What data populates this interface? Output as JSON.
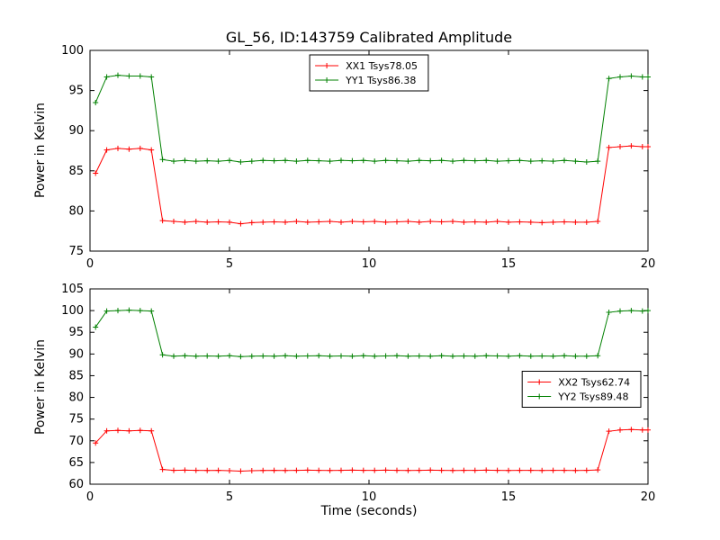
{
  "title": "GL_56, ID:143759 Calibrated Amplitude",
  "chart_data": [
    {
      "type": "line",
      "xlabel": "",
      "ylabel": "Power in Kelvin",
      "xlim": [
        0,
        20
      ],
      "ylim": [
        75,
        100
      ],
      "xticks": [
        0,
        5,
        10,
        15,
        20
      ],
      "yticks": [
        75,
        80,
        85,
        90,
        95,
        100
      ],
      "grid": false,
      "legend_position": "upper center",
      "series": [
        {
          "name": "XX1 Tsys78.05",
          "color": "#ff0000",
          "marker": "+",
          "x": [
            0.2,
            0.6,
            1.0,
            1.4,
            1.8,
            2.2,
            2.6,
            3.0,
            3.4,
            3.8,
            4.2,
            4.6,
            5.0,
            5.4,
            5.8,
            6.2,
            6.6,
            7.0,
            7.4,
            7.8,
            8.2,
            8.6,
            9.0,
            9.4,
            9.8,
            10.2,
            10.6,
            11.0,
            11.4,
            11.8,
            12.2,
            12.6,
            13.0,
            13.4,
            13.8,
            14.2,
            14.6,
            15.0,
            15.4,
            15.8,
            16.2,
            16.6,
            17.0,
            17.4,
            17.8,
            18.2,
            18.6,
            19.0,
            19.4,
            19.8,
            20.0
          ],
          "y": [
            84.7,
            87.6,
            87.8,
            87.7,
            87.8,
            87.6,
            78.8,
            78.7,
            78.6,
            78.7,
            78.6,
            78.65,
            78.6,
            78.4,
            78.55,
            78.6,
            78.65,
            78.6,
            78.7,
            78.6,
            78.65,
            78.7,
            78.6,
            78.7,
            78.65,
            78.7,
            78.6,
            78.65,
            78.7,
            78.6,
            78.7,
            78.65,
            78.7,
            78.6,
            78.65,
            78.6,
            78.7,
            78.6,
            78.65,
            78.6,
            78.55,
            78.6,
            78.65,
            78.6,
            78.6,
            78.7,
            87.9,
            88.0,
            88.1,
            88.0,
            88.0
          ]
        },
        {
          "name": "YY1 Tsys86.38",
          "color": "#008000",
          "marker": "+",
          "x": [
            0.2,
            0.6,
            1.0,
            1.4,
            1.8,
            2.2,
            2.6,
            3.0,
            3.4,
            3.8,
            4.2,
            4.6,
            5.0,
            5.4,
            5.8,
            6.2,
            6.6,
            7.0,
            7.4,
            7.8,
            8.2,
            8.6,
            9.0,
            9.4,
            9.8,
            10.2,
            10.6,
            11.0,
            11.4,
            11.8,
            12.2,
            12.6,
            13.0,
            13.4,
            13.8,
            14.2,
            14.6,
            15.0,
            15.4,
            15.8,
            16.2,
            16.6,
            17.0,
            17.4,
            17.8,
            18.2,
            18.6,
            19.0,
            19.4,
            19.8,
            20.0
          ],
          "y": [
            93.5,
            96.7,
            96.9,
            96.8,
            96.8,
            96.7,
            86.4,
            86.2,
            86.3,
            86.2,
            86.25,
            86.2,
            86.3,
            86.1,
            86.2,
            86.3,
            86.25,
            86.3,
            86.2,
            86.3,
            86.25,
            86.2,
            86.3,
            86.25,
            86.3,
            86.2,
            86.3,
            86.25,
            86.2,
            86.3,
            86.25,
            86.3,
            86.2,
            86.3,
            86.25,
            86.3,
            86.2,
            86.25,
            86.3,
            86.2,
            86.25,
            86.2,
            86.3,
            86.2,
            86.1,
            86.2,
            96.5,
            96.7,
            96.8,
            96.7,
            96.7
          ]
        }
      ]
    },
    {
      "type": "line",
      "xlabel": "Time (seconds)",
      "ylabel": "Power in Kelvin",
      "xlim": [
        0,
        20
      ],
      "ylim": [
        60,
        105
      ],
      "xticks": [
        0,
        5,
        10,
        15,
        20
      ],
      "yticks": [
        60,
        65,
        70,
        75,
        80,
        85,
        90,
        95,
        100,
        105
      ],
      "grid": false,
      "legend_position": "center right",
      "series": [
        {
          "name": "XX2 Tsys62.74",
          "color": "#ff0000",
          "marker": "+",
          "x": [
            0.2,
            0.6,
            1.0,
            1.4,
            1.8,
            2.2,
            2.6,
            3.0,
            3.4,
            3.8,
            4.2,
            4.6,
            5.0,
            5.4,
            5.8,
            6.2,
            6.6,
            7.0,
            7.4,
            7.8,
            8.2,
            8.6,
            9.0,
            9.4,
            9.8,
            10.2,
            10.6,
            11.0,
            11.4,
            11.8,
            12.2,
            12.6,
            13.0,
            13.4,
            13.8,
            14.2,
            14.6,
            15.0,
            15.4,
            15.8,
            16.2,
            16.6,
            17.0,
            17.4,
            17.8,
            18.2,
            18.6,
            19.0,
            19.4,
            19.8,
            20.0
          ],
          "y": [
            69.5,
            72.3,
            72.4,
            72.3,
            72.4,
            72.3,
            63.4,
            63.2,
            63.25,
            63.2,
            63.15,
            63.2,
            63.1,
            63.0,
            63.1,
            63.15,
            63.2,
            63.15,
            63.2,
            63.25,
            63.2,
            63.15,
            63.2,
            63.25,
            63.2,
            63.2,
            63.25,
            63.2,
            63.15,
            63.2,
            63.25,
            63.2,
            63.15,
            63.2,
            63.2,
            63.25,
            63.2,
            63.15,
            63.2,
            63.2,
            63.15,
            63.2,
            63.2,
            63.15,
            63.2,
            63.3,
            72.2,
            72.5,
            72.6,
            72.5,
            72.5
          ]
        },
        {
          "name": "YY2 Tsys89.48",
          "color": "#008000",
          "marker": "+",
          "x": [
            0.2,
            0.6,
            1.0,
            1.4,
            1.8,
            2.2,
            2.6,
            3.0,
            3.4,
            3.8,
            4.2,
            4.6,
            5.0,
            5.4,
            5.8,
            6.2,
            6.6,
            7.0,
            7.4,
            7.8,
            8.2,
            8.6,
            9.0,
            9.4,
            9.8,
            10.2,
            10.6,
            11.0,
            11.4,
            11.8,
            12.2,
            12.6,
            13.0,
            13.4,
            13.8,
            14.2,
            14.6,
            15.0,
            15.4,
            15.8,
            16.2,
            16.6,
            17.0,
            17.4,
            17.8,
            18.2,
            18.6,
            19.0,
            19.4,
            19.8,
            20.0
          ],
          "y": [
            96.2,
            99.9,
            100.0,
            100.1,
            100.0,
            99.9,
            89.8,
            89.5,
            89.6,
            89.5,
            89.55,
            89.5,
            89.6,
            89.4,
            89.5,
            89.55,
            89.5,
            89.6,
            89.5,
            89.55,
            89.6,
            89.5,
            89.55,
            89.5,
            89.6,
            89.5,
            89.55,
            89.6,
            89.5,
            89.55,
            89.5,
            89.6,
            89.5,
            89.55,
            89.5,
            89.6,
            89.55,
            89.5,
            89.6,
            89.5,
            89.55,
            89.5,
            89.6,
            89.5,
            89.5,
            89.6,
            99.6,
            99.9,
            100.0,
            99.9,
            100.0
          ]
        }
      ]
    }
  ]
}
